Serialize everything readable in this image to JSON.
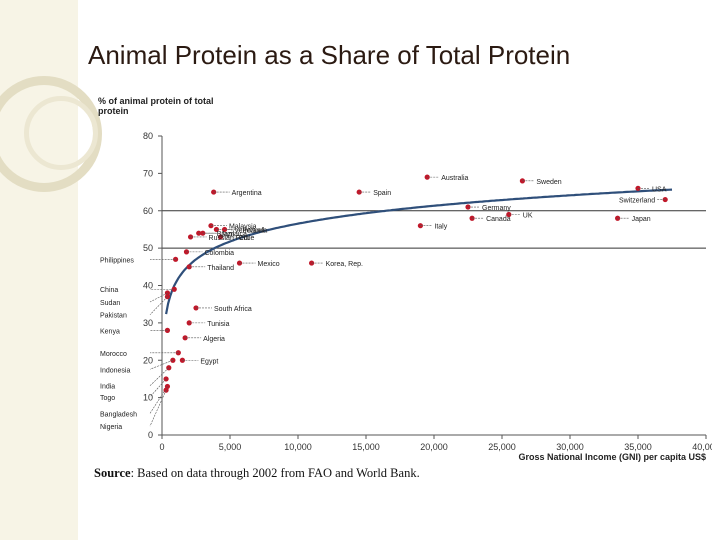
{
  "slide": {
    "title": "Animal Protein as a Share of Total Protein"
  },
  "source": {
    "label": "Source",
    "text": ": Based on data through 2002 from FAO and World Bank."
  },
  "colors": {
    "point": "#c0182a",
    "curve": "#2f4f7a",
    "axis": "#555555"
  },
  "chart_data": {
    "type": "scatter",
    "ylabel_lines": [
      "% of animal protein of total",
      "protein"
    ],
    "xlabel": "Gross National Income (GNI) per capita US$",
    "xlim": [
      0,
      40000
    ],
    "ylim": [
      0,
      80
    ],
    "xticks": [
      0,
      5000,
      10000,
      15000,
      20000,
      25000,
      30000,
      35000,
      40000
    ],
    "xtick_labels": [
      "0",
      "5,000",
      "10,000",
      "15,000",
      "20,000",
      "25,000",
      "30,000",
      "35,000",
      "40,000"
    ],
    "yticks": [
      0,
      10,
      20,
      30,
      40,
      50,
      60,
      70,
      80
    ],
    "hlines": [
      60,
      50
    ],
    "trend": "logarithmic",
    "points": [
      {
        "label": "Argentina",
        "x": 3800,
        "y": 65
      },
      {
        "label": "Australia",
        "x": 19500,
        "y": 69
      },
      {
        "label": "Sweden",
        "x": 26500,
        "y": 68
      },
      {
        "label": "USA",
        "x": 35000,
        "y": 66
      },
      {
        "label": "Spain",
        "x": 14500,
        "y": 65
      },
      {
        "label": "Switzerland",
        "x": 37000,
        "y": 63
      },
      {
        "label": "Malaysia",
        "x": 3600,
        "y": 56
      },
      {
        "label": "Venezuela",
        "x": 4000,
        "y": 55
      },
      {
        "label": "Poland",
        "x": 4600,
        "y": 55
      },
      {
        "label": "Chile",
        "x": 4300,
        "y": 53
      },
      {
        "label": "Brazil",
        "x": 2700,
        "y": 54
      },
      {
        "label": "Russian Fed.",
        "x": 2100,
        "y": 53
      },
      {
        "label": "Jamaica",
        "x": 3000,
        "y": 54
      },
      {
        "label": "Germany",
        "x": 22500,
        "y": 61
      },
      {
        "label": "Italy",
        "x": 19000,
        "y": 56
      },
      {
        "label": "Canada",
        "x": 22800,
        "y": 58
      },
      {
        "label": "UK",
        "x": 25500,
        "y": 59
      },
      {
        "label": "Japan",
        "x": 33500,
        "y": 58
      },
      {
        "label": "Colombia",
        "x": 1800,
        "y": 49
      },
      {
        "label": "Philippines",
        "x": 1000,
        "y": 47
      },
      {
        "label": "Thailand",
        "x": 2000,
        "y": 45
      },
      {
        "label": "Mexico",
        "x": 5700,
        "y": 46
      },
      {
        "label": "Korea, Rep.",
        "x": 11000,
        "y": 46
      },
      {
        "label": "China",
        "x": 900,
        "y": 39
      },
      {
        "label": "Sudan",
        "x": 400,
        "y": 38
      },
      {
        "label": "Pakistan",
        "x": 400,
        "y": 37
      },
      {
        "label": "South Africa",
        "x": 2500,
        "y": 34
      },
      {
        "label": "Tunisia",
        "x": 2000,
        "y": 30
      },
      {
        "label": "Kenya",
        "x": 400,
        "y": 28
      },
      {
        "label": "Algeria",
        "x": 1700,
        "y": 26
      },
      {
        "label": "Morocco",
        "x": 1200,
        "y": 22
      },
      {
        "label": "Egypt",
        "x": 1500,
        "y": 20
      },
      {
        "label": "Indonesia",
        "x": 800,
        "y": 20
      },
      {
        "label": "India",
        "x": 500,
        "y": 18
      },
      {
        "label": "Togo",
        "x": 300,
        "y": 15
      },
      {
        "label": "Bangladesh",
        "x": 400,
        "y": 13
      },
      {
        "label": "Nigeria",
        "x": 300,
        "y": 12
      }
    ]
  }
}
